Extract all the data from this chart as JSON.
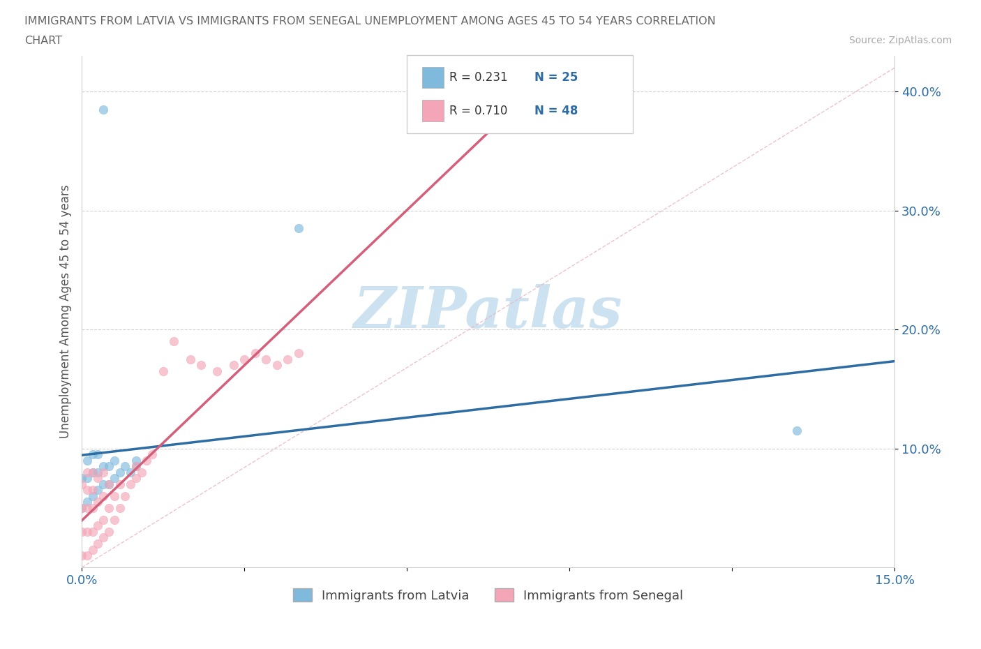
{
  "title_line1": "IMMIGRANTS FROM LATVIA VS IMMIGRANTS FROM SENEGAL UNEMPLOYMENT AMONG AGES 45 TO 54 YEARS CORRELATION",
  "title_line2": "CHART",
  "source": "Source: ZipAtlas.com",
  "ylabel": "Unemployment Among Ages 45 to 54 years",
  "xlim": [
    0.0,
    0.15
  ],
  "ylim": [
    0.0,
    0.43
  ],
  "ytick_vals": [
    0.1,
    0.2,
    0.3,
    0.4
  ],
  "ytick_labels": [
    "10.0%",
    "20.0%",
    "30.0%",
    "40.0%"
  ],
  "xtick_vals": [
    0.0,
    0.15
  ],
  "xtick_labels": [
    "0.0%",
    "15.0%"
  ],
  "latvia_color": "#7fbadd",
  "senegal_color": "#f4a6b8",
  "latvia_line_color": "#2e6da4",
  "senegal_line_color": "#d45f7a",
  "diag_color": "#e8b4c0",
  "watermark_color": "#c8dff0",
  "background_color": "#ffffff",
  "grid_color": "#cccccc",
  "legend_R_color": "#333333",
  "legend_N_color": "#2e6da4",
  "tick_color": "#2e6da4",
  "latvia_x": [
    0.0,
    0.0,
    0.001,
    0.001,
    0.001,
    0.002,
    0.002,
    0.002,
    0.003,
    0.003,
    0.003,
    0.004,
    0.004,
    0.005,
    0.005,
    0.006,
    0.006,
    0.007,
    0.008,
    0.009,
    0.01,
    0.01,
    0.04,
    0.132,
    0.004
  ],
  "latvia_y": [
    0.05,
    0.075,
    0.055,
    0.075,
    0.09,
    0.06,
    0.08,
    0.095,
    0.065,
    0.08,
    0.095,
    0.07,
    0.085,
    0.07,
    0.085,
    0.075,
    0.09,
    0.08,
    0.085,
    0.08,
    0.085,
    0.09,
    0.285,
    0.115,
    0.385
  ],
  "senegal_x": [
    0.0,
    0.0,
    0.0,
    0.0,
    0.001,
    0.001,
    0.001,
    0.001,
    0.001,
    0.002,
    0.002,
    0.002,
    0.002,
    0.002,
    0.003,
    0.003,
    0.003,
    0.003,
    0.004,
    0.004,
    0.004,
    0.004,
    0.005,
    0.005,
    0.005,
    0.006,
    0.006,
    0.007,
    0.007,
    0.008,
    0.009,
    0.01,
    0.01,
    0.011,
    0.012,
    0.013,
    0.015,
    0.017,
    0.02,
    0.022,
    0.025,
    0.028,
    0.03,
    0.032,
    0.034,
    0.036,
    0.038,
    0.04
  ],
  "senegal_y": [
    0.01,
    0.03,
    0.05,
    0.07,
    0.01,
    0.03,
    0.05,
    0.065,
    0.08,
    0.015,
    0.03,
    0.05,
    0.065,
    0.08,
    0.02,
    0.035,
    0.055,
    0.075,
    0.025,
    0.04,
    0.06,
    0.08,
    0.03,
    0.05,
    0.07,
    0.04,
    0.06,
    0.05,
    0.07,
    0.06,
    0.07,
    0.075,
    0.085,
    0.08,
    0.09,
    0.095,
    0.165,
    0.19,
    0.175,
    0.17,
    0.165,
    0.17,
    0.175,
    0.18,
    0.175,
    0.17,
    0.175,
    0.18
  ]
}
